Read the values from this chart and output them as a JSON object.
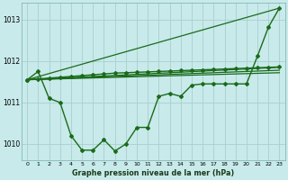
{
  "title": "Graphe pression niveau de la mer (hPa)",
  "bg_color": "#c8eaea",
  "grid_color": "#aacfcf",
  "line_color": "#1a6b1a",
  "xlim": [
    -0.5,
    23.5
  ],
  "ylim": [
    1009.6,
    1013.4
  ],
  "yticks": [
    1010,
    1011,
    1012,
    1013
  ],
  "xticks": [
    0,
    1,
    2,
    3,
    4,
    5,
    6,
    7,
    8,
    9,
    10,
    11,
    12,
    13,
    14,
    15,
    16,
    17,
    18,
    19,
    20,
    21,
    22,
    23
  ],
  "series1_x": [
    0,
    1,
    2,
    3,
    4,
    5,
    6,
    7,
    8,
    9,
    10,
    11,
    12,
    13,
    14,
    15,
    16,
    17,
    18,
    19,
    20,
    21,
    22,
    23
  ],
  "series1_y": [
    1011.55,
    1011.75,
    1011.1,
    1011.0,
    1010.2,
    1009.85,
    1009.85,
    1010.1,
    1009.83,
    1010.0,
    1010.4,
    1010.4,
    1011.15,
    1011.22,
    1011.15,
    1011.42,
    1011.45,
    1011.45,
    1011.45,
    1011.45,
    1011.45,
    1012.12,
    1012.82,
    1013.28
  ],
  "series2_x": [
    0,
    23
  ],
  "series2_y": [
    1011.55,
    1013.28
  ],
  "series3_x": [
    0,
    23
  ],
  "series3_y": [
    1011.55,
    1011.85
  ],
  "series4_x": [
    0,
    23
  ],
  "series4_y": [
    1011.55,
    1011.78
  ],
  "series5_x": [
    0,
    23
  ],
  "series5_y": [
    1011.55,
    1011.72
  ],
  "series6_x": [
    0,
    1,
    2,
    3,
    4,
    5,
    6,
    7,
    8,
    9,
    10,
    11,
    12,
    13,
    14,
    15,
    16,
    17,
    18,
    19,
    20,
    21,
    22,
    23
  ],
  "series6_y": [
    1011.55,
    1011.57,
    1011.59,
    1011.61,
    1011.63,
    1011.65,
    1011.67,
    1011.69,
    1011.71,
    1011.72,
    1011.73,
    1011.74,
    1011.75,
    1011.76,
    1011.77,
    1011.78,
    1011.79,
    1011.8,
    1011.81,
    1011.82,
    1011.83,
    1011.84,
    1011.85,
    1011.86
  ]
}
